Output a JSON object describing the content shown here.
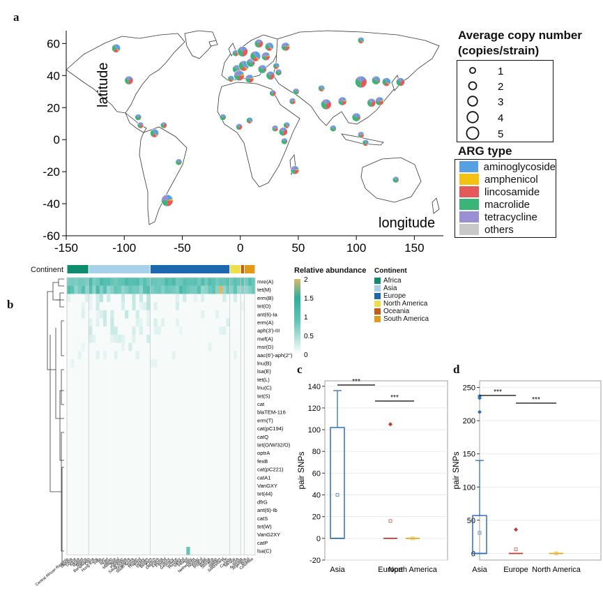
{
  "panels": {
    "a": "a",
    "b": "b",
    "c": "c",
    "d": "d"
  },
  "map": {
    "xlabel": "longitude",
    "ylabel": "latitude",
    "xticks": [
      "-150",
      "-100",
      "-50",
      "0",
      "50",
      "100",
      "150"
    ],
    "yticks": [
      "60",
      "40",
      "20",
      "0",
      "-20",
      "-40",
      "-60"
    ],
    "xticks_values": [
      -150,
      -100,
      -50,
      0,
      50,
      100,
      150
    ],
    "yticks_values": [
      60,
      40,
      20,
      0,
      -20,
      -40,
      -60
    ],
    "xlim": [
      -150,
      175
    ],
    "ylim": [
      -60,
      68
    ],
    "copy_legend": {
      "title_line1": "Average copy number",
      "title_line2": "(copies/strain)",
      "items": [
        "1",
        "2",
        "3",
        "4",
        "5"
      ]
    },
    "arg_legend": {
      "title": "ARG type",
      "items": [
        {
          "label": "aminoglycoside",
          "color": "#56a0e3"
        },
        {
          "label": "amphenicol",
          "color": "#f5c214"
        },
        {
          "label": "lincosamide",
          "color": "#e45a5a"
        },
        {
          "label": "macrolide",
          "color": "#3bb478"
        },
        {
          "label": "tetracycline",
          "color": "#9b8fd4"
        },
        {
          "label": "others",
          "color": "#c8c8c8"
        }
      ]
    },
    "sites": [
      {
        "lon": -107,
        "lat": 57,
        "size": 2
      },
      {
        "lon": -96,
        "lat": 37,
        "size": 2
      },
      {
        "lon": -88,
        "lat": 14,
        "size": 1
      },
      {
        "lon": -86,
        "lat": 9,
        "size": 1
      },
      {
        "lon": -74,
        "lat": 4,
        "size": 2
      },
      {
        "lon": -66,
        "lat": 9,
        "size": 1
      },
      {
        "lon": -53,
        "lat": -14,
        "size": 1
      },
      {
        "lon": -63,
        "lat": -38,
        "size": 4
      },
      {
        "lon": -8,
        "lat": 38,
        "size": 1
      },
      {
        "lon": -4,
        "lat": 54,
        "size": 1
      },
      {
        "lon": -3,
        "lat": 44,
        "size": 2
      },
      {
        "lon": -1,
        "lat": 40,
        "size": 3
      },
      {
        "lon": 3,
        "lat": 46,
        "size": 3
      },
      {
        "lon": 2,
        "lat": 55,
        "size": 3
      },
      {
        "lon": 9,
        "lat": 48,
        "size": 2
      },
      {
        "lon": 8,
        "lat": 38,
        "size": 2
      },
      {
        "lon": 13,
        "lat": 52,
        "size": 3
      },
      {
        "lon": 16,
        "lat": 60,
        "size": 2
      },
      {
        "lon": 19,
        "lat": 44,
        "size": 2
      },
      {
        "lon": 22,
        "lat": 52,
        "size": 2
      },
      {
        "lon": 25,
        "lat": 58,
        "size": 2
      },
      {
        "lon": 26,
        "lat": 40,
        "size": 2
      },
      {
        "lon": 33,
        "lat": 42,
        "size": 1
      },
      {
        "lon": 39,
        "lat": 58,
        "size": 2
      },
      {
        "lon": 31,
        "lat": 46,
        "size": 1
      },
      {
        "lon": 28,
        "lat": 29,
        "size": 1
      },
      {
        "lon": 48,
        "lat": 30,
        "size": 1
      },
      {
        "lon": 45,
        "lat": 24,
        "size": 1
      },
      {
        "lon": 40,
        "lat": 9,
        "size": 1
      },
      {
        "lon": 37,
        "lat": 5,
        "size": 2
      },
      {
        "lon": 38,
        "lat": -1,
        "size": 1
      },
      {
        "lon": 30,
        "lat": 7,
        "size": 1
      },
      {
        "lon": 8,
        "lat": 12,
        "size": 1
      },
      {
        "lon": -1,
        "lat": 8,
        "size": 1
      },
      {
        "lon": -15,
        "lat": 14,
        "size": 1
      },
      {
        "lon": 47,
        "lat": -19,
        "size": 2
      },
      {
        "lon": 70,
        "lat": 32,
        "size": 1
      },
      {
        "lon": 74,
        "lat": 22,
        "size": 3
      },
      {
        "lon": 80,
        "lat": 7,
        "size": 1
      },
      {
        "lon": 88,
        "lat": 24,
        "size": 2
      },
      {
        "lon": 104,
        "lat": 62,
        "size": 1
      },
      {
        "lon": 104,
        "lat": 36,
        "size": 4
      },
      {
        "lon": 100,
        "lat": 14,
        "size": 2
      },
      {
        "lon": 104,
        "lat": 3,
        "size": 1
      },
      {
        "lon": 108,
        "lat": -2,
        "size": 1
      },
      {
        "lon": 113,
        "lat": 23,
        "size": 2
      },
      {
        "lon": 117,
        "lat": 37,
        "size": 2
      },
      {
        "lon": 120,
        "lat": 24,
        "size": 2
      },
      {
        "lon": 126,
        "lat": 36,
        "size": 2
      },
      {
        "lon": 138,
        "lat": 36,
        "size": 2
      },
      {
        "lon": 134,
        "lat": -25,
        "size": 1
      }
    ]
  },
  "heatmap": {
    "continent_label": "Continent",
    "colorbar_title": "Relative abundance",
    "colorbar_ticks": [
      "2",
      "1.5",
      "1",
      "0.5",
      "0"
    ],
    "colorbar_values": [
      2,
      1.5,
      1,
      0.5,
      0
    ],
    "continent_legend": {
      "title": "Continent",
      "items": [
        {
          "label": "Africa",
          "color": "#0e8c6e"
        },
        {
          "label": "Asia",
          "color": "#a7d1ea"
        },
        {
          "label": "Europe",
          "color": "#1c67ae"
        },
        {
          "label": "North America",
          "color": "#ecdf4a"
        },
        {
          "label": "Oceania",
          "color": "#c75a16"
        },
        {
          "label": "South America",
          "color": "#e39a18"
        }
      ]
    },
    "genes": [
      "mre(A)",
      "tet(M)",
      "erm(B)",
      "tet(O)",
      "ant(6)-Ia",
      "erm(A)",
      "aph(3')-III",
      "mef(A)",
      "msr(D)",
      "aac(6')-aph(2'')",
      "lnu(B)",
      "lsa(E)",
      "tet(L)",
      "lnu(C)",
      "tet(S)",
      "cat",
      "blaTEM-116",
      "erm(T)",
      "cat(pC194)",
      "catQ",
      "tet(O/W/32/O)",
      "optrA",
      "fexB",
      "cat(pC221)",
      "catA1",
      "VanGXY",
      "tet(44)",
      "dfrG",
      "ant(6)-Ib",
      "catS",
      "tet(W)",
      "VanG2XY",
      "catP",
      "lsa(C)"
    ],
    "countries": [
      "Central African Republic",
      "Gambia",
      "Ghana",
      "Kenya",
      "Malawi",
      "Nigeria",
      "Bangladesh",
      "China",
      "Hong Kong",
      "India",
      "Iran",
      "Israel",
      "Japan",
      "Malaysia",
      "Nepal",
      "Pakistan",
      "Saudi Arabia",
      "Singapore",
      "South Korea",
      "Taiwan",
      "Thailand",
      "Turkey",
      "Vietnam",
      "Belgium",
      "Czech",
      "Denmark",
      "Estonia",
      "Finland",
      "France",
      "Germany",
      "Greece",
      "Hungary",
      "Iceland",
      "Ireland",
      "Italy",
      "Netherlands",
      "Norway",
      "Poland",
      "Portugal",
      "Russia",
      "Slovakia",
      "Spain",
      "Sweden",
      "Switzerland",
      "UK",
      "Canada",
      "Mexico",
      "USA",
      "Australia",
      "Argentina",
      "Brazil",
      "Colombia"
    ],
    "continent_segments": [
      {
        "continent": "Africa",
        "count": 6
      },
      {
        "continent": "Asia",
        "count": 17
      },
      {
        "continent": "Europe",
        "count": 22
      },
      {
        "continent": "North America",
        "count": 3
      },
      {
        "continent": "Oceania",
        "count": 1
      },
      {
        "continent": "South America",
        "count": 3
      }
    ]
  },
  "boxplot_c": {
    "ylabel": "pair SNPs",
    "categories": [
      "Asia",
      "Europe",
      "North America"
    ],
    "yticks": [
      "140",
      "120",
      "100",
      "80",
      "60",
      "40",
      "20",
      "0",
      "-20"
    ],
    "ylim": [
      -20,
      145
    ],
    "sig_labels": [
      "***",
      "***"
    ],
    "chart_data": {
      "type": "box",
      "series": [
        {
          "name": "Asia",
          "q1": 0,
          "median": 0,
          "q3": 102,
          "whisker_low": 0,
          "whisker_high": 136,
          "mean": 40,
          "outliers": []
        },
        {
          "name": "Europe",
          "q1": 0,
          "median": 0,
          "q3": 0,
          "whisker_low": 0,
          "whisker_high": 0,
          "mean": 16,
          "outliers": [
            105
          ]
        },
        {
          "name": "North America",
          "q1": 0,
          "median": 0,
          "q3": 0,
          "whisker_low": 0,
          "whisker_high": 0,
          "mean": 0,
          "outliers": []
        }
      ],
      "ylabel": "pair SNPs"
    }
  },
  "boxplot_d": {
    "ylabel": "pair SNPs",
    "categories": [
      "Asia",
      "Europe",
      "North America"
    ],
    "yticks": [
      "250",
      "200",
      "150",
      "100",
      "50",
      "0"
    ],
    "ylim": [
      -10,
      260
    ],
    "sig_labels": [
      "***",
      "***"
    ],
    "chart_data": {
      "type": "box",
      "series": [
        {
          "name": "Asia",
          "q1": 0,
          "median": 0,
          "q3": 57,
          "whisker_low": 0,
          "whisker_high": 140,
          "mean": 31,
          "outliers": [
            213,
            234,
            237
          ]
        },
        {
          "name": "Europe",
          "q1": 0,
          "median": 0,
          "q3": 0,
          "whisker_low": 0,
          "whisker_high": 0,
          "mean": 6,
          "outliers": [
            36
          ]
        },
        {
          "name": "North America",
          "q1": 0,
          "median": 0,
          "q3": 0,
          "whisker_low": 0,
          "whisker_high": 0,
          "mean": 0,
          "outliers": []
        }
      ],
      "ylabel": "pair SNPs"
    }
  }
}
